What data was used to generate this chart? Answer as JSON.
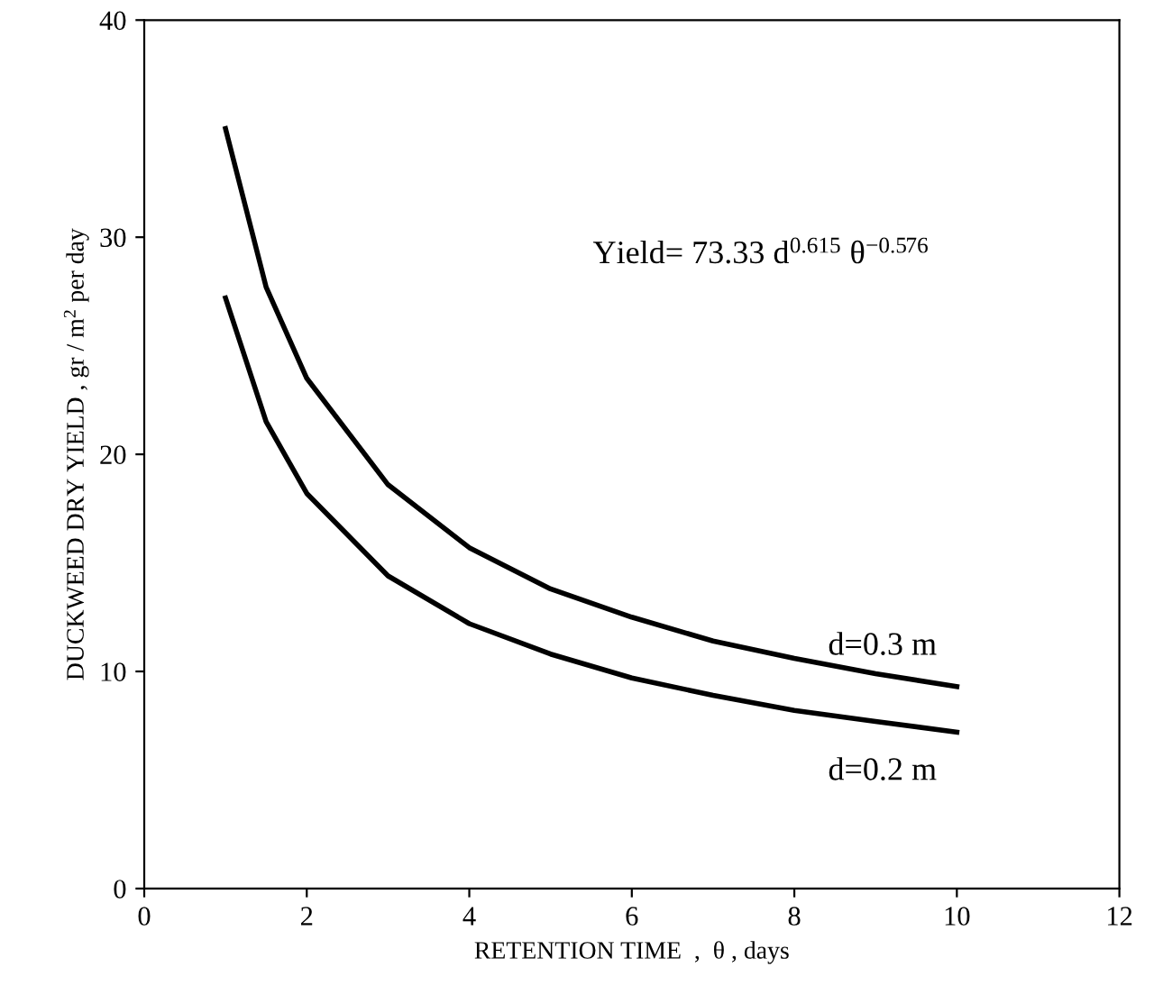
{
  "chart_data": {
    "type": "line",
    "xlabel": "RETENTION TIME  ,  θ , days",
    "ylabel": "DUCKWEED DRY YIELD , gr / m$^{2}$ per day",
    "x": [
      1,
      1.5,
      2,
      3,
      4,
      5,
      6,
      7,
      8,
      9,
      10
    ],
    "series": [
      {
        "name": "d=0.3 m",
        "color": "#000000",
        "values": [
          35.0,
          27.7,
          23.5,
          18.6,
          15.7,
          13.8,
          12.5,
          11.4,
          10.6,
          9.9,
          9.3
        ]
      },
      {
        "name": "d=0.2 m",
        "color": "#000000",
        "values": [
          27.2,
          21.5,
          18.2,
          14.4,
          12.2,
          10.8,
          9.7,
          8.9,
          8.2,
          7.7,
          7.2
        ]
      }
    ],
    "annotations": [
      "Yield= 73.33 d$^{0.615}$ θ$^{−0.576}$"
    ],
    "xlim": [
      0,
      12
    ],
    "xticks": [
      0,
      2,
      4,
      6,
      8,
      10,
      12
    ],
    "ylim": [
      0,
      40
    ],
    "yticks": [
      0,
      10,
      20,
      30,
      40
    ],
    "grid": false,
    "marker": "none",
    "line_style": "solid"
  }
}
